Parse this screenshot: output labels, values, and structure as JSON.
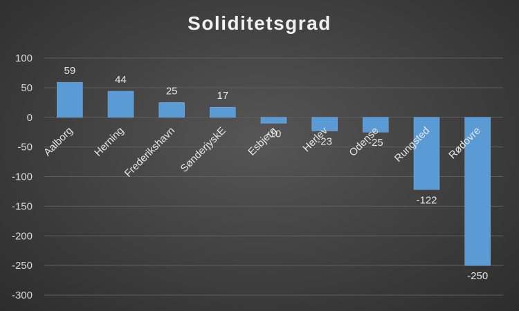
{
  "chart_data": {
    "type": "bar",
    "title": "Soliditetsgrad",
    "xlabel": "",
    "ylabel": "",
    "categories": [
      "Aalborg",
      "Herning",
      "Frederikshavn",
      "SønderjyskE",
      "Esbjerg",
      "Herlev",
      "Odense",
      "Rungsted",
      "Rødovre"
    ],
    "values": [
      59,
      44,
      25,
      17,
      -10,
      -23,
      -25,
      -122,
      -250
    ],
    "ylim": [
      -300,
      100
    ],
    "yticks": [
      100,
      50,
      0,
      -50,
      -100,
      -150,
      -200,
      -250,
      -300
    ],
    "grid": true,
    "legend": "none",
    "colors": {
      "bar": "#5b9bd5",
      "bar_edge": "#7fb3e3",
      "grid": "#5e5e5e",
      "text": "#d9d9d9",
      "title": "#f2f2f2"
    }
  }
}
